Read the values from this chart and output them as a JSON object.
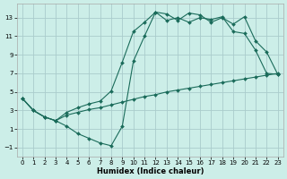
{
  "xlabel": "Humidex (Indice chaleur)",
  "bg_color": "#cceee8",
  "grid_color": "#aacccc",
  "line_color": "#1a6b5a",
  "xlim": [
    -0.5,
    23.5
  ],
  "ylim": [
    -2.0,
    14.5
  ],
  "xticks": [
    0,
    1,
    2,
    3,
    4,
    5,
    6,
    7,
    8,
    9,
    10,
    11,
    12,
    13,
    14,
    15,
    16,
    17,
    18,
    19,
    20,
    21,
    22,
    23
  ],
  "yticks": [
    -1,
    1,
    3,
    5,
    7,
    9,
    11,
    13
  ],
  "line1_x": [
    0,
    1,
    2,
    3,
    4,
    5,
    6,
    7,
    8,
    9,
    10,
    11,
    12,
    13,
    14,
    15,
    16,
    17,
    18,
    19,
    20,
    21,
    22,
    23
  ],
  "line1_y": [
    4.3,
    3.0,
    2.3,
    1.9,
    1.3,
    0.5,
    0.0,
    -0.5,
    -0.8,
    1.3,
    8.3,
    11.0,
    13.6,
    13.4,
    12.7,
    13.5,
    13.3,
    12.5,
    13.0,
    12.3,
    13.1,
    10.5,
    9.3,
    6.9
  ],
  "line2_x": [
    0,
    1,
    2,
    3,
    4,
    5,
    6,
    7,
    8,
    9,
    10,
    11,
    12,
    13,
    14,
    15,
    16,
    17,
    18,
    19,
    20,
    21,
    22,
    23
  ],
  "line2_y": [
    4.3,
    3.0,
    2.3,
    1.9,
    2.8,
    3.3,
    3.7,
    4.0,
    5.1,
    8.2,
    11.5,
    12.5,
    13.6,
    12.7,
    13.0,
    12.5,
    13.0,
    12.8,
    13.1,
    11.5,
    11.3,
    9.5,
    7.0,
    6.9
  ],
  "line3_x": [
    0,
    1,
    2,
    3,
    4,
    5,
    6,
    7,
    8,
    9,
    10,
    11,
    12,
    13,
    14,
    15,
    16,
    17,
    18,
    19,
    20,
    21,
    22,
    23
  ],
  "line3_y": [
    4.3,
    3.0,
    2.3,
    1.9,
    2.5,
    2.8,
    3.1,
    3.3,
    3.6,
    3.9,
    4.2,
    4.5,
    4.7,
    5.0,
    5.2,
    5.4,
    5.6,
    5.8,
    6.0,
    6.2,
    6.4,
    6.6,
    6.8,
    7.0
  ]
}
